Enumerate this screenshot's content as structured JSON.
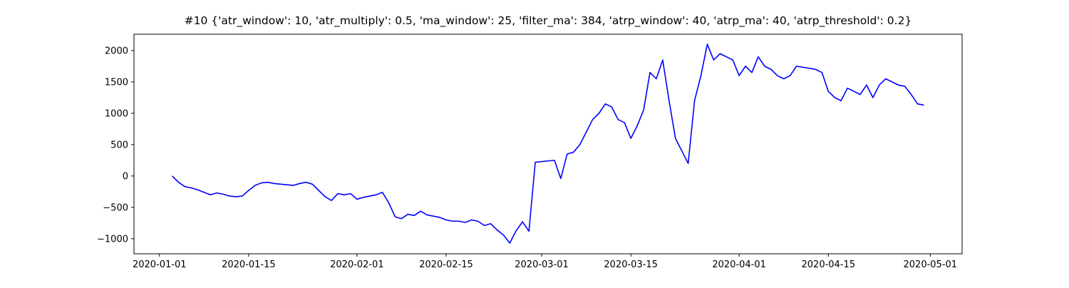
{
  "chart_data": {
    "type": "line",
    "title": "#10 {'atr_window': 10, 'atr_multiply': 0.5, 'ma_window': 25, 'filter_ma': 384, 'atrp_window': 40, 'atrp_ma': 40, 'atrp_threshold': 0.2}",
    "x": [
      "2020-01-03",
      "2020-01-04",
      "2020-01-05",
      "2020-01-06",
      "2020-01-07",
      "2020-01-08",
      "2020-01-09",
      "2020-01-10",
      "2020-01-11",
      "2020-01-12",
      "2020-01-13",
      "2020-01-14",
      "2020-01-15",
      "2020-01-16",
      "2020-01-17",
      "2020-01-18",
      "2020-01-19",
      "2020-01-20",
      "2020-01-21",
      "2020-01-22",
      "2020-01-23",
      "2020-01-24",
      "2020-01-25",
      "2020-01-26",
      "2020-01-27",
      "2020-01-28",
      "2020-01-29",
      "2020-01-30",
      "2020-01-31",
      "2020-02-01",
      "2020-02-02",
      "2020-02-03",
      "2020-02-04",
      "2020-02-05",
      "2020-02-06",
      "2020-02-07",
      "2020-02-08",
      "2020-02-09",
      "2020-02-10",
      "2020-02-11",
      "2020-02-12",
      "2020-02-13",
      "2020-02-14",
      "2020-02-15",
      "2020-02-16",
      "2020-02-17",
      "2020-02-18",
      "2020-02-19",
      "2020-02-20",
      "2020-02-21",
      "2020-02-22",
      "2020-02-23",
      "2020-02-24",
      "2020-02-25",
      "2020-02-26",
      "2020-02-27",
      "2020-02-28",
      "2020-02-29",
      "2020-03-01",
      "2020-03-02",
      "2020-03-03",
      "2020-03-04",
      "2020-03-05",
      "2020-03-06",
      "2020-03-07",
      "2020-03-08",
      "2020-03-09",
      "2020-03-10",
      "2020-03-11",
      "2020-03-12",
      "2020-03-13",
      "2020-03-14",
      "2020-03-15",
      "2020-03-16",
      "2020-03-17",
      "2020-03-18",
      "2020-03-19",
      "2020-03-20",
      "2020-03-21",
      "2020-03-22",
      "2020-03-23",
      "2020-03-24",
      "2020-03-25",
      "2020-03-26",
      "2020-03-27",
      "2020-03-28",
      "2020-03-29",
      "2020-03-30",
      "2020-03-31",
      "2020-04-01",
      "2020-04-02",
      "2020-04-03",
      "2020-04-04",
      "2020-04-05",
      "2020-04-06",
      "2020-04-07",
      "2020-04-08",
      "2020-04-09",
      "2020-04-10",
      "2020-04-13",
      "2020-04-14",
      "2020-04-15",
      "2020-04-16",
      "2020-04-17",
      "2020-04-18",
      "2020-04-19",
      "2020-04-20",
      "2020-04-21",
      "2020-04-22",
      "2020-04-23",
      "2020-04-24",
      "2020-04-25",
      "2020-04-26",
      "2020-04-27",
      "2020-04-28",
      "2020-04-29",
      "2020-04-30"
    ],
    "series": [
      {
        "color": "#0000ff",
        "values": [
          0,
          -100,
          -170,
          -190,
          -220,
          -260,
          -300,
          -270,
          -290,
          -320,
          -330,
          -320,
          -230,
          -150,
          -110,
          -100,
          -120,
          -130,
          -140,
          -150,
          -120,
          -100,
          -130,
          -230,
          -330,
          -390,
          -280,
          -300,
          -280,
          -370,
          -340,
          -320,
          -300,
          -260,
          -430,
          -650,
          -680,
          -610,
          -630,
          -560,
          -620,
          -640,
          -660,
          -700,
          -720,
          -720,
          -740,
          -700,
          -720,
          -790,
          -760,
          -860,
          -940,
          -1070,
          -870,
          -730,
          -880,
          220,
          230,
          240,
          250,
          -40,
          350,
          380,
          500,
          700,
          900,
          1000,
          1150,
          1100,
          900,
          850,
          600,
          800,
          1050,
          1650,
          1550,
          1850,
          1200,
          600,
          400,
          200,
          1200,
          1600,
          2100,
          1850,
          1950,
          1900,
          1850,
          1600,
          1750,
          1650,
          1900,
          1750,
          1700,
          1600,
          1550,
          1600,
          1750,
          1700,
          1650,
          1350,
          1250,
          1200,
          1400,
          1350,
          1300,
          1450,
          1250,
          1450,
          1550,
          1500,
          1450,
          1430,
          1300,
          1150,
          1130
        ]
      }
    ],
    "xlim": [
      "2019-12-28",
      "2020-05-06"
    ],
    "xticks": [
      "2020-01-01",
      "2020-01-15",
      "2020-02-01",
      "2020-02-15",
      "2020-03-01",
      "2020-03-15",
      "2020-04-01",
      "2020-04-15",
      "2020-05-01"
    ],
    "ylim": [
      -1240,
      2260
    ],
    "yticks": [
      {
        "value": -1000,
        "label": "−1000"
      },
      {
        "value": -500,
        "label": "−500"
      },
      0,
      500,
      1000,
      1500,
      2000
    ],
    "grid": false
  }
}
